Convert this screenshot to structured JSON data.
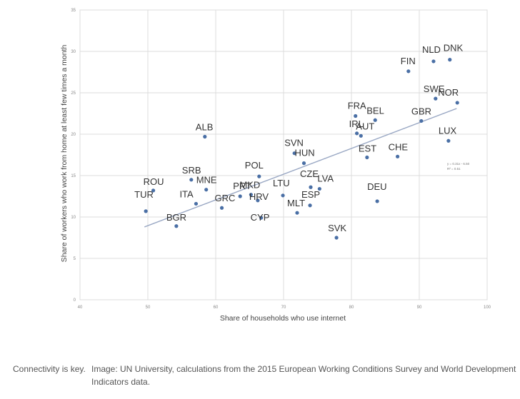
{
  "chart_data": {
    "type": "scatter",
    "title": "",
    "xlabel": "Share of households who use internet",
    "ylabel": "Share of workers who work from home at least few times a month",
    "xlim": [
      40,
      100
    ],
    "ylim": [
      0,
      35
    ],
    "xticks": [
      "40",
      "50",
      "60",
      "70",
      "80",
      "90",
      "100"
    ],
    "yticks": [
      "0",
      "5",
      "10",
      "15",
      "20",
      "25",
      "30",
      "35"
    ],
    "grid": true,
    "point_color": "#4a6fa5",
    "trendline_color": "#9aa8c4",
    "trendline": {
      "equation": "y = 0.31x - 6.50",
      "r2": "R² = 0.51",
      "x": [
        49.5,
        95.5
      ],
      "y": [
        8.8,
        23.1
      ]
    },
    "points": [
      {
        "label": "TUR",
        "x": 49.7,
        "y": 10.7
      },
      {
        "label": "ROU",
        "x": 50.8,
        "y": 13.2
      },
      {
        "label": "BGR",
        "x": 54.2,
        "y": 8.9
      },
      {
        "label": "SRB",
        "x": 56.4,
        "y": 14.5
      },
      {
        "label": "ITA",
        "x": 57.1,
        "y": 11.6
      },
      {
        "label": "MNE",
        "x": 58.6,
        "y": 13.3
      },
      {
        "label": "ALB",
        "x": 58.4,
        "y": 19.7
      },
      {
        "label": "GRC",
        "x": 60.9,
        "y": 11.1
      },
      {
        "label": "PRT",
        "x": 63.6,
        "y": 12.5
      },
      {
        "label": "MKD",
        "x": 65.2,
        "y": 12.7
      },
      {
        "label": "POL",
        "x": 66.4,
        "y": 14.9
      },
      {
        "label": "HRV",
        "x": 66.2,
        "y": 12.0
      },
      {
        "label": "CYP",
        "x": 66.7,
        "y": 9.9
      },
      {
        "label": "LTU",
        "x": 69.9,
        "y": 12.6
      },
      {
        "label": "SVN",
        "x": 71.6,
        "y": 17.7
      },
      {
        "label": "HUN",
        "x": 73.0,
        "y": 16.5
      },
      {
        "label": "MLT",
        "x": 72.0,
        "y": 10.5
      },
      {
        "label": "CZE",
        "x": 74.0,
        "y": 13.6
      },
      {
        "label": "ESP",
        "x": 73.9,
        "y": 11.4
      },
      {
        "label": "LVA",
        "x": 75.3,
        "y": 13.4
      },
      {
        "label": "SVK",
        "x": 77.8,
        "y": 7.5
      },
      {
        "label": "FRA",
        "x": 80.6,
        "y": 22.2
      },
      {
        "label": "IRL",
        "x": 80.8,
        "y": 20.1
      },
      {
        "label": "AUT",
        "x": 81.4,
        "y": 19.8
      },
      {
        "label": "EST",
        "x": 82.3,
        "y": 17.2
      },
      {
        "label": "BEL",
        "x": 83.5,
        "y": 21.7
      },
      {
        "label": "DEU",
        "x": 83.8,
        "y": 11.9
      },
      {
        "label": "CHE",
        "x": 86.8,
        "y": 17.3
      },
      {
        "label": "FIN",
        "x": 88.4,
        "y": 27.6
      },
      {
        "label": "GBR",
        "x": 90.3,
        "y": 21.6
      },
      {
        "label": "NLD",
        "x": 92.1,
        "y": 28.8
      },
      {
        "label": "SWE",
        "x": 92.4,
        "y": 24.3
      },
      {
        "label": "DNK",
        "x": 94.5,
        "y": 29.0
      },
      {
        "label": "LUX",
        "x": 94.3,
        "y": 19.2
      },
      {
        "label": "NOR",
        "x": 95.6,
        "y": 23.8
      }
    ]
  },
  "caption": {
    "left": "Connectivity is key.",
    "right": "Image: UN University, calculations from the 2015 European Working Conditions Survey and World Development Indicators data."
  }
}
